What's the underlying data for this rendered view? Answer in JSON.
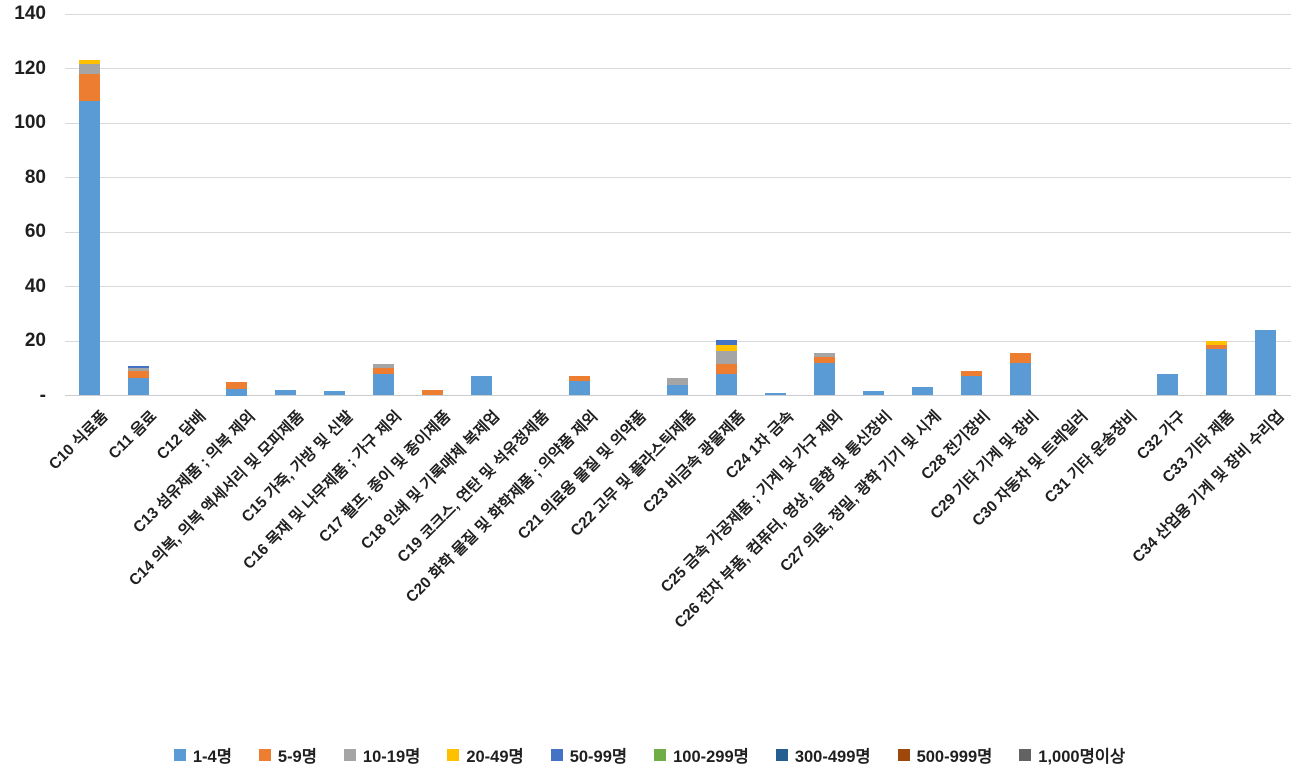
{
  "chart_data": {
    "type": "bar",
    "stacked": true,
    "title": "",
    "xlabel": "",
    "ylabel": "",
    "ylim": [
      0,
      140
    ],
    "ytick_interval": 20,
    "grid": "horizontal",
    "legend_position": "bottom",
    "yticks": [
      {
        "label": "140",
        "value": 140
      },
      {
        "label": "120",
        "value": 120
      },
      {
        "label": "100",
        "value": 100
      },
      {
        "label": "80",
        "value": 80
      },
      {
        "label": "60",
        "value": 60
      },
      {
        "label": "40",
        "value": 40
      },
      {
        "label": "20",
        "value": 20
      },
      {
        "label": "-",
        "value": 0
      }
    ],
    "categories": [
      "C10 식료품",
      "C11 음료",
      "C12 담배",
      "C13 섬유제품 ; 의복 제외",
      "C14 의복, 의복 액세서리 및 모피제품",
      "C15 가죽, 가방 및 신발",
      "C16 목재 및 나무제품 ; 가구 제외",
      "C17 펄프, 종이 및 종이제품",
      "C18 인쇄 및 기록매체 복제업",
      "C19 코크스, 연탄 및 석유정제품",
      "C20 화학 물질 및 화학제품 ; 의약품 제외",
      "C21 의료용 물질 및 의약품",
      "C22 고무 및 플라스틱제품",
      "C23 비금속 광물제품",
      "C24 1차 금속",
      "C25 금속 가공제품 ; 기계 및 가구 제외",
      "C26 전자 부품, 컴퓨터, 영상, 음향 및 통신장비",
      "C27 의료, 정밀, 광학 기기 및 시계",
      "C28 전기장비",
      "C29 기타 기계 및 장비",
      "C30 자동차 및 트레일러",
      "C31 기타 운송장비",
      "C32 가구",
      "C33 기타 제품",
      "C34 산업용 기계 및 장비 수리업"
    ],
    "series": [
      {
        "name": "1-4명",
        "color": "#5B9BD5",
        "values": [
          108,
          6.5,
          0,
          2.5,
          2,
          1.5,
          8,
          0,
          7,
          0,
          5.5,
          0,
          4,
          8,
          1,
          12,
          1.5,
          3,
          7,
          12,
          0,
          0,
          8,
          17,
          24
        ]
      },
      {
        "name": "5-9명",
        "color": "#ED7D31",
        "values": [
          10,
          2.5,
          0,
          2.5,
          0,
          0,
          2,
          2,
          0,
          0,
          1.5,
          0,
          0,
          3.5,
          0,
          2,
          0,
          0,
          2,
          3.5,
          0,
          0,
          0,
          1.5,
          0
        ]
      },
      {
        "name": "10-19명",
        "color": "#A5A5A5",
        "values": [
          3.5,
          1,
          0,
          0,
          0,
          0,
          1.5,
          0,
          0,
          0,
          0,
          0,
          2.5,
          5,
          0,
          1.5,
          0,
          0,
          0,
          0,
          0,
          0,
          0,
          0,
          0
        ]
      },
      {
        "name": "20-49명",
        "color": "#FFC000",
        "values": [
          1.5,
          0,
          0,
          0,
          0,
          0,
          0,
          0,
          0,
          0,
          0,
          0,
          0,
          2,
          0,
          0,
          0,
          0,
          0,
          0,
          0,
          0,
          0,
          1.5,
          0
        ]
      },
      {
        "name": "50-99명",
        "color": "#4472C4",
        "values": [
          0,
          1,
          0,
          0,
          0,
          0,
          0,
          0,
          0,
          0,
          0,
          0,
          0,
          2,
          0,
          0,
          0,
          0,
          0,
          0,
          0,
          0,
          0,
          0,
          0
        ]
      },
      {
        "name": "100-299명",
        "color": "#70AD47",
        "values": [
          0,
          0,
          0,
          0,
          0,
          0,
          0,
          0,
          0,
          0,
          0,
          0,
          0,
          0,
          0,
          0,
          0,
          0,
          0,
          0,
          0,
          0,
          0,
          0,
          0
        ]
      },
      {
        "name": "300-499명",
        "color": "#255E91",
        "values": [
          0,
          0,
          0,
          0,
          0,
          0,
          0,
          0,
          0,
          0,
          0,
          0,
          0,
          0,
          0,
          0,
          0,
          0,
          0,
          0,
          0,
          0,
          0,
          0,
          0
        ]
      },
      {
        "name": "500-999명",
        "color": "#9E480E",
        "values": [
          0,
          0,
          0,
          0,
          0,
          0,
          0,
          0,
          0,
          0,
          0,
          0,
          0,
          0,
          0,
          0,
          0,
          0,
          0,
          0,
          0,
          0,
          0,
          0,
          0
        ]
      },
      {
        "name": "1,000명이상",
        "color": "#636363",
        "values": [
          0,
          0,
          0,
          0,
          0,
          0,
          0,
          0,
          0,
          0,
          0,
          0,
          0,
          0,
          0,
          0,
          0,
          0,
          0,
          0,
          0,
          0,
          0,
          0,
          0
        ]
      }
    ]
  }
}
